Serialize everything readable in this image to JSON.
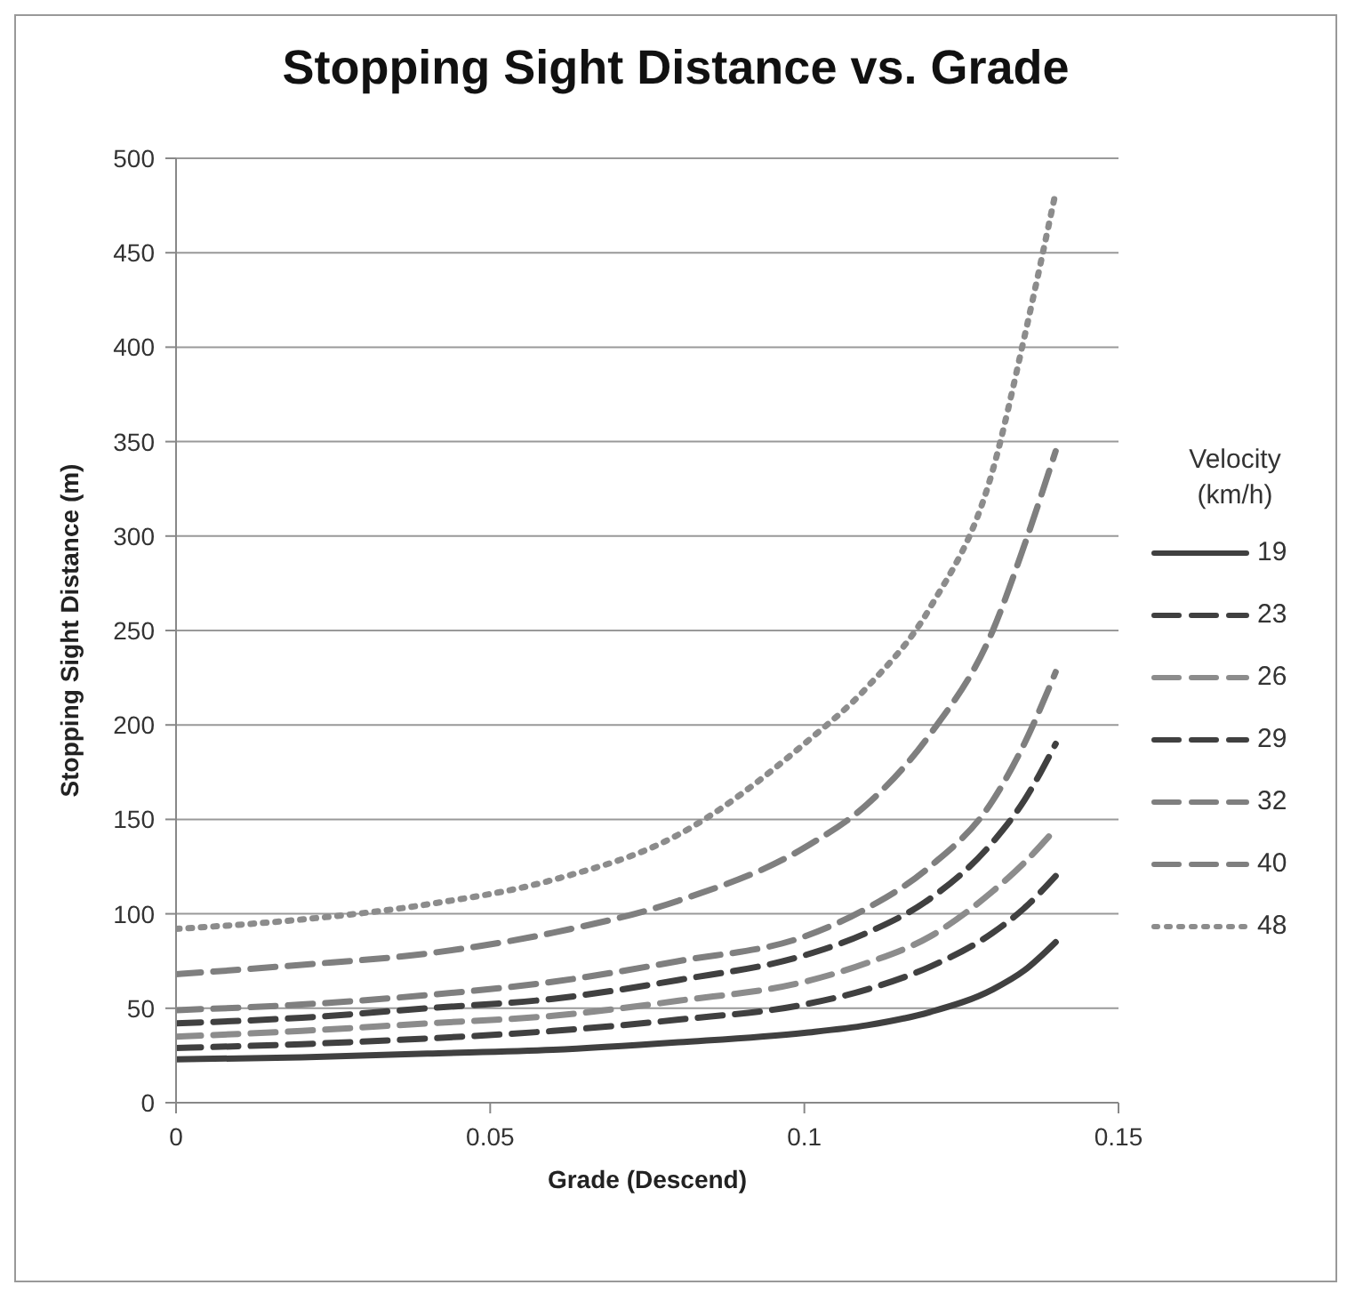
{
  "chart_data": {
    "type": "line",
    "title": "Stopping Sight Distance vs. Grade",
    "xlabel": "Grade (Descend)",
    "ylabel": "Stopping Sight Distance (m)",
    "legend_title": "Velocity (km/h)",
    "x": [
      0,
      0.02,
      0.04,
      0.06,
      0.08,
      0.1,
      0.11,
      0.12,
      0.13,
      0.135,
      0.14
    ],
    "series": [
      {
        "name": "19",
        "color": "#404040",
        "line_style": "solid",
        "values": [
          23,
          24,
          26,
          28,
          32,
          37,
          41,
          48,
          60,
          70,
          85
        ]
      },
      {
        "name": "23",
        "color": "#404040",
        "line_style": "dashed",
        "values": [
          29,
          31,
          34,
          38,
          44,
          52,
          60,
          72,
          90,
          103,
          120
        ]
      },
      {
        "name": "26",
        "color": "#8c8c8c",
        "line_style": "dashed",
        "values": [
          35,
          38,
          42,
          46,
          54,
          64,
          74,
          88,
          112,
          127,
          145
        ]
      },
      {
        "name": "29",
        "color": "#404040",
        "line_style": "dashed",
        "values": [
          42,
          45,
          50,
          55,
          65,
          78,
          90,
          108,
          138,
          160,
          190
        ]
      },
      {
        "name": "32",
        "color": "#7f7f7f",
        "line_style": "dashed",
        "values": [
          49,
          52,
          57,
          64,
          75,
          88,
          103,
          125,
          160,
          190,
          228
        ]
      },
      {
        "name": "40",
        "color": "#7f7f7f",
        "line_style": "dashed",
        "values": [
          68,
          73,
          79,
          90,
          107,
          135,
          158,
          195,
          250,
          295,
          345
        ]
      },
      {
        "name": "48",
        "color": "#8c8c8c",
        "line_style": "dotted",
        "values": [
          92,
          97,
          105,
          118,
          142,
          190,
          220,
          262,
          335,
          405,
          482
        ]
      }
    ],
    "xlim": [
      0,
      0.15
    ],
    "xticks": [
      0,
      0.05,
      0.1,
      0.15
    ],
    "ylim": [
      0,
      500
    ],
    "yticks": [
      0,
      50,
      100,
      150,
      200,
      250,
      300,
      350,
      400,
      450,
      500
    ],
    "grid": "y",
    "legend": "right",
    "marker": "none"
  }
}
